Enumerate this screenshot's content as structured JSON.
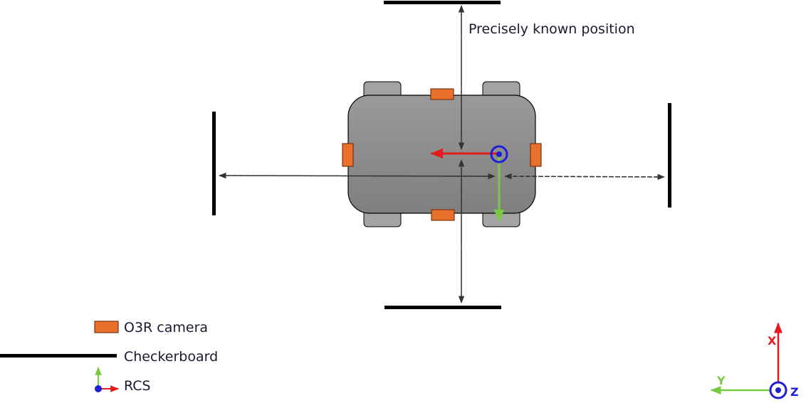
{
  "annotation": {
    "text": "Precisely known position"
  },
  "legend": {
    "camera_label": "O3R camera",
    "checkerboard_label": "Checkerboard",
    "rcs_label": "RCS"
  },
  "axes_key": {
    "x_label": "X",
    "y_label": "Y",
    "z_label": "Z"
  },
  "colors": {
    "camera_fill": "#e8702a",
    "camera_stroke": "#7a3412",
    "x_axis": "#e41a1c",
    "y_axis": "#7ac943",
    "z_axis": "#1f1fd6",
    "checkerboard": "#000000",
    "body_top": "#9a9a9a",
    "body_bottom": "#7f7f7f",
    "wheel": "#a3a3a3"
  },
  "icons": [
    "camera-icon",
    "checkerboard-icon",
    "rcs-axes-icon",
    "z-axis-out-of-page-icon"
  ]
}
